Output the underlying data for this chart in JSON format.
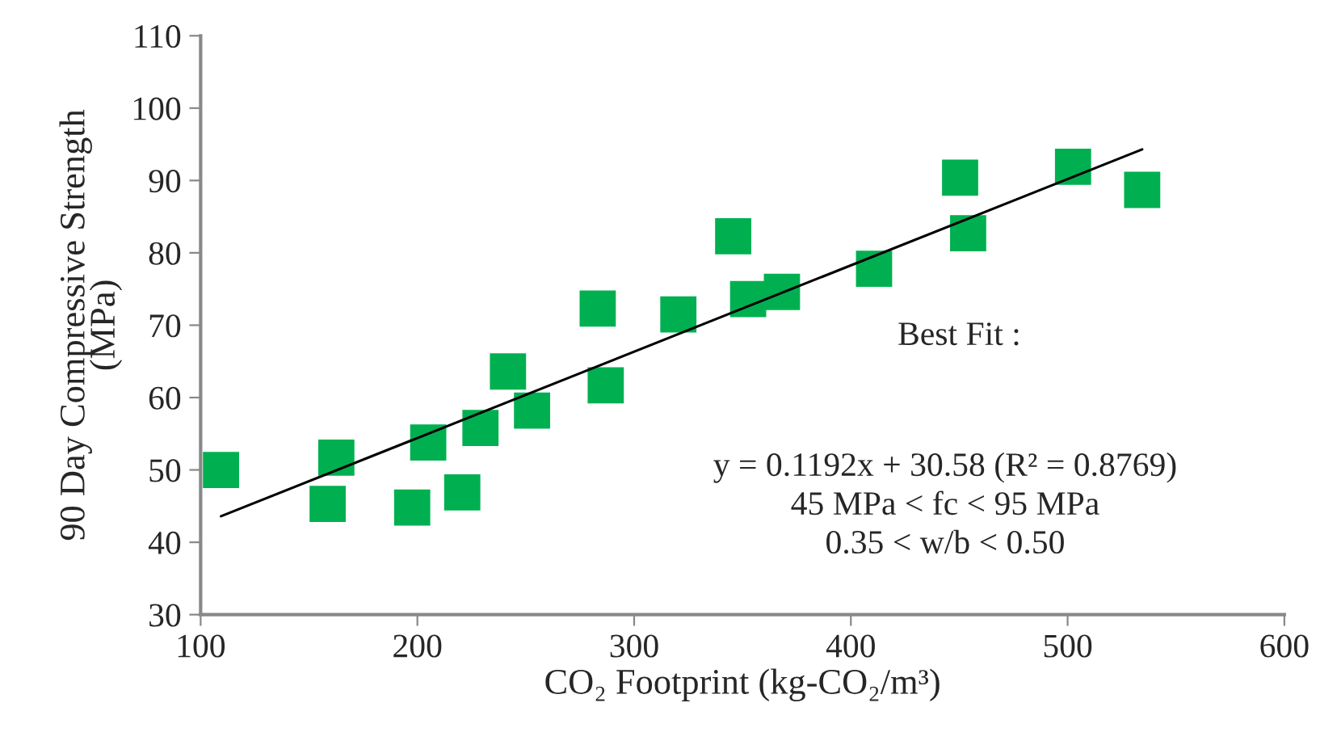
{
  "chart_data": {
    "type": "scatter",
    "xlabel": "CO₂ Footprint (kg-CO₂/m³)",
    "ylabel": "90 Day Compressive Strength\n(MPa)",
    "xlim": [
      100,
      600
    ],
    "xticks": [
      100,
      200,
      300,
      400,
      500,
      600
    ],
    "ylim": [
      30,
      110
    ],
    "yticks": [
      30,
      40,
      50,
      60,
      70,
      80,
      90,
      100,
      110
    ],
    "grid": false,
    "legend": false,
    "marker": "square",
    "series": [
      {
        "color": "#00b050",
        "x": [
          109.4,
          162.6,
          158.6,
          197.6,
          205.0,
          220.7,
          229.1,
          241.8,
          252.9,
          283.2,
          286.9,
          320.4,
          345.7,
          352.6,
          368.2,
          410.7,
          450.4,
          454.1,
          502.5,
          534.4
        ],
        "values": [
          50.0,
          51.7,
          45.3,
          44.8,
          53.8,
          46.9,
          55.8,
          63.6,
          58.2,
          72.3,
          61.7,
          71.5,
          82.3,
          73.6,
          74.6,
          77.8,
          90.4,
          82.7,
          91.9,
          88.7
        ]
      },
      {
        "type": "line",
        "color": "#000000",
        "marker": "none",
        "line_style": "solid",
        "x": [
          109.4,
          534.4
        ],
        "values": [
          43.6,
          94.3
        ]
      }
    ],
    "annotations": [
      "Best Fit :",
      "y = 0.1192x + 30.58 (R² = 0.8769)\n45 MPa < fc < 95 MPa\n0.35 < w/b < 0.50"
    ]
  }
}
